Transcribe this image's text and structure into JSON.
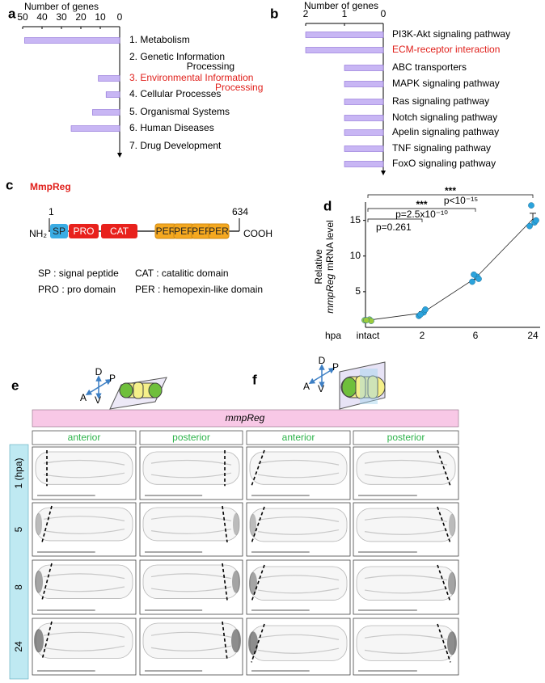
{
  "chart_data": [
    {
      "type": "hbar",
      "panel": "a",
      "x_label": "Number of genes",
      "xlim": [
        50,
        0
      ],
      "xticks": [
        50,
        40,
        30,
        20,
        10,
        0
      ],
      "categories": [
        [
          "1. Metabolism"
        ],
        [
          "2. Genetic Information",
          "Processing"
        ],
        [
          "3. Environmental Information",
          "Processing"
        ],
        [
          "4. Cellular Processes"
        ],
        [
          "5. Organismal Systems"
        ],
        [
          "6. Human Diseases"
        ],
        [
          "7. Drug Development"
        ]
      ],
      "values": [
        49,
        0,
        11,
        7,
        14,
        25,
        0
      ],
      "color": "#c8b6f4",
      "label_colors": [
        "#000000",
        "#000000",
        "#e0201b",
        "#000000",
        "#000000",
        "#000000",
        "#000000"
      ]
    },
    {
      "type": "hbar",
      "panel": "b",
      "x_label": "Number of genes",
      "xlim": [
        2,
        0
      ],
      "xticks": [
        2,
        1,
        0
      ],
      "categories": [
        [
          "PI3K-Akt signaling pathway"
        ],
        [
          "ECM-receptor interaction"
        ],
        [
          "ABC transporters"
        ],
        [
          "MAPK signaling pathway"
        ],
        [
          "Ras signaling pathway"
        ],
        [
          "Notch signaling pathway"
        ],
        [
          "Apelin signaling pathway"
        ],
        [
          "TNF signaling pathway"
        ],
        [
          "FoxO signaling pathway"
        ]
      ],
      "values": [
        2,
        2,
        1,
        1,
        1,
        1,
        1,
        1,
        1
      ],
      "color": "#c8b6f4",
      "label_colors": [
        "#000000",
        "#e0201b",
        "#000000",
        "#000000",
        "#000000",
        "#000000",
        "#000000",
        "#000000",
        "#000000"
      ]
    },
    {
      "type": "dot_line",
      "panel": "d",
      "y_label": [
        "Relative",
        "mmpReg",
        "mRNA level"
      ],
      "x_label": "hpa",
      "categories": [
        "intact",
        "2",
        "6",
        "24"
      ],
      "ylim": [
        0,
        17
      ],
      "yticks": [
        5,
        10,
        15
      ],
      "points": [
        [
          1.0,
          1.1,
          0.9,
          1.0
        ],
        [
          1.6,
          2.1,
          2.5,
          1.8
        ],
        [
          6.4,
          7.1,
          6.8,
          7.4
        ],
        [
          14.2,
          14.7,
          15.0,
          17.1
        ]
      ],
      "means": [
        1.0,
        2.0,
        6.9,
        15.2
      ],
      "errors": [
        0.05,
        0.2,
        0.2,
        0.8
      ],
      "colors": [
        "#9ccc3c",
        "#2ba3dc",
        "#2ba3dc",
        "#2ba3dc"
      ],
      "significance": [
        {
          "from": 0,
          "to": 3,
          "stars": "***",
          "p": "p<10⁻¹⁵"
        },
        {
          "from": 0,
          "to": 2,
          "stars": "***",
          "p": "p=2.5x10⁻¹⁰"
        },
        {
          "from": 0,
          "to": 1,
          "p": "p=0.261"
        }
      ]
    }
  ],
  "protein_diagram": {
    "panel": "c",
    "name": "MmpReg",
    "start": "1",
    "end": "634",
    "n_term": "NH₂",
    "c_term": "COOH",
    "domains": [
      {
        "label": "SP",
        "color": "#3aace4"
      },
      {
        "label": "PRO",
        "color": "#e8211c"
      },
      {
        "label": "CAT",
        "color": "#e8211c"
      },
      {
        "label": "PER",
        "color": "#f5a81f"
      },
      {
        "label": "PER",
        "color": "#f5a81f"
      },
      {
        "label": "PER",
        "color": "#f5a81f"
      },
      {
        "label": "PER",
        "color": "#f5a81f"
      }
    ],
    "legend": [
      "SP : signal peptide",
      "CAT : catalitic domain",
      "PRO : pro domain",
      "PER : hemopexin-like domain"
    ]
  },
  "in_situ": {
    "gene": "mmpReg",
    "rows": [
      "1 (hpa)",
      "5",
      "8",
      "24"
    ],
    "panels": [
      {
        "label": "e",
        "axis_labels": [
          "D",
          "P",
          "A",
          "V"
        ],
        "columns": [
          "anterior",
          "posterior"
        ]
      },
      {
        "label": "f",
        "axis_labels": [
          "D",
          "P",
          "A",
          "V"
        ],
        "columns": [
          "anterior",
          "posterior"
        ]
      }
    ]
  }
}
